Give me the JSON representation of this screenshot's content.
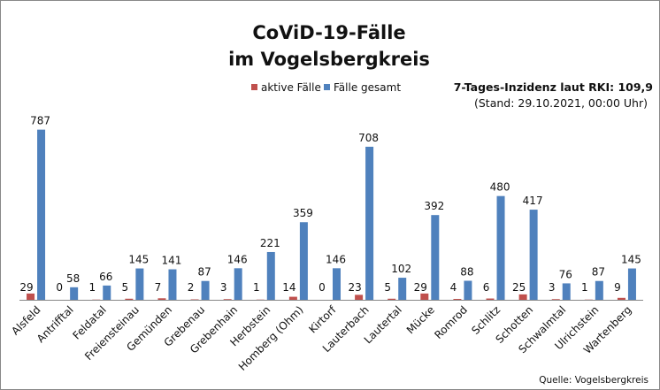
{
  "chart_data": {
    "type": "bar",
    "title": [
      "CoViD-19-Fälle",
      "im Vogelsbergkreis"
    ],
    "categories": [
      "Alsfeld",
      "Antrifftal",
      "Feldatal",
      "Freiensteinau",
      "Gemünden",
      "Grebenau",
      "Grebenhain",
      "Herbstein",
      "Homberg (Ohm)",
      "Kirtorf",
      "Lauterbach",
      "Lautertal",
      "Mücke",
      "Romrod",
      "Schlitz",
      "Schotten",
      "Schwalmtal",
      "Ulrichstein",
      "Wartenberg"
    ],
    "series": [
      {
        "name": "aktive Fälle",
        "color": "#c0504d",
        "values": [
          29,
          0,
          1,
          5,
          7,
          2,
          3,
          1,
          14,
          0,
          23,
          5,
          29,
          4,
          6,
          25,
          3,
          1,
          9
        ]
      },
      {
        "name": "Fälle gesamt",
        "color": "#4f81bd",
        "values": [
          787,
          58,
          66,
          145,
          141,
          87,
          146,
          221,
          359,
          146,
          708,
          102,
          392,
          88,
          480,
          417,
          76,
          87,
          145
        ]
      }
    ],
    "ylim": [
      0,
      900
    ],
    "grid": false,
    "legend_position": "top",
    "data_labels": true,
    "annotation": {
      "line1": "7-Tages-Inzidenz laut RKI: 109,9",
      "line2": "(Stand: 29.10.2021, 00:00 Uhr)"
    },
    "source": "Quelle: Vogelsbergkreis"
  }
}
